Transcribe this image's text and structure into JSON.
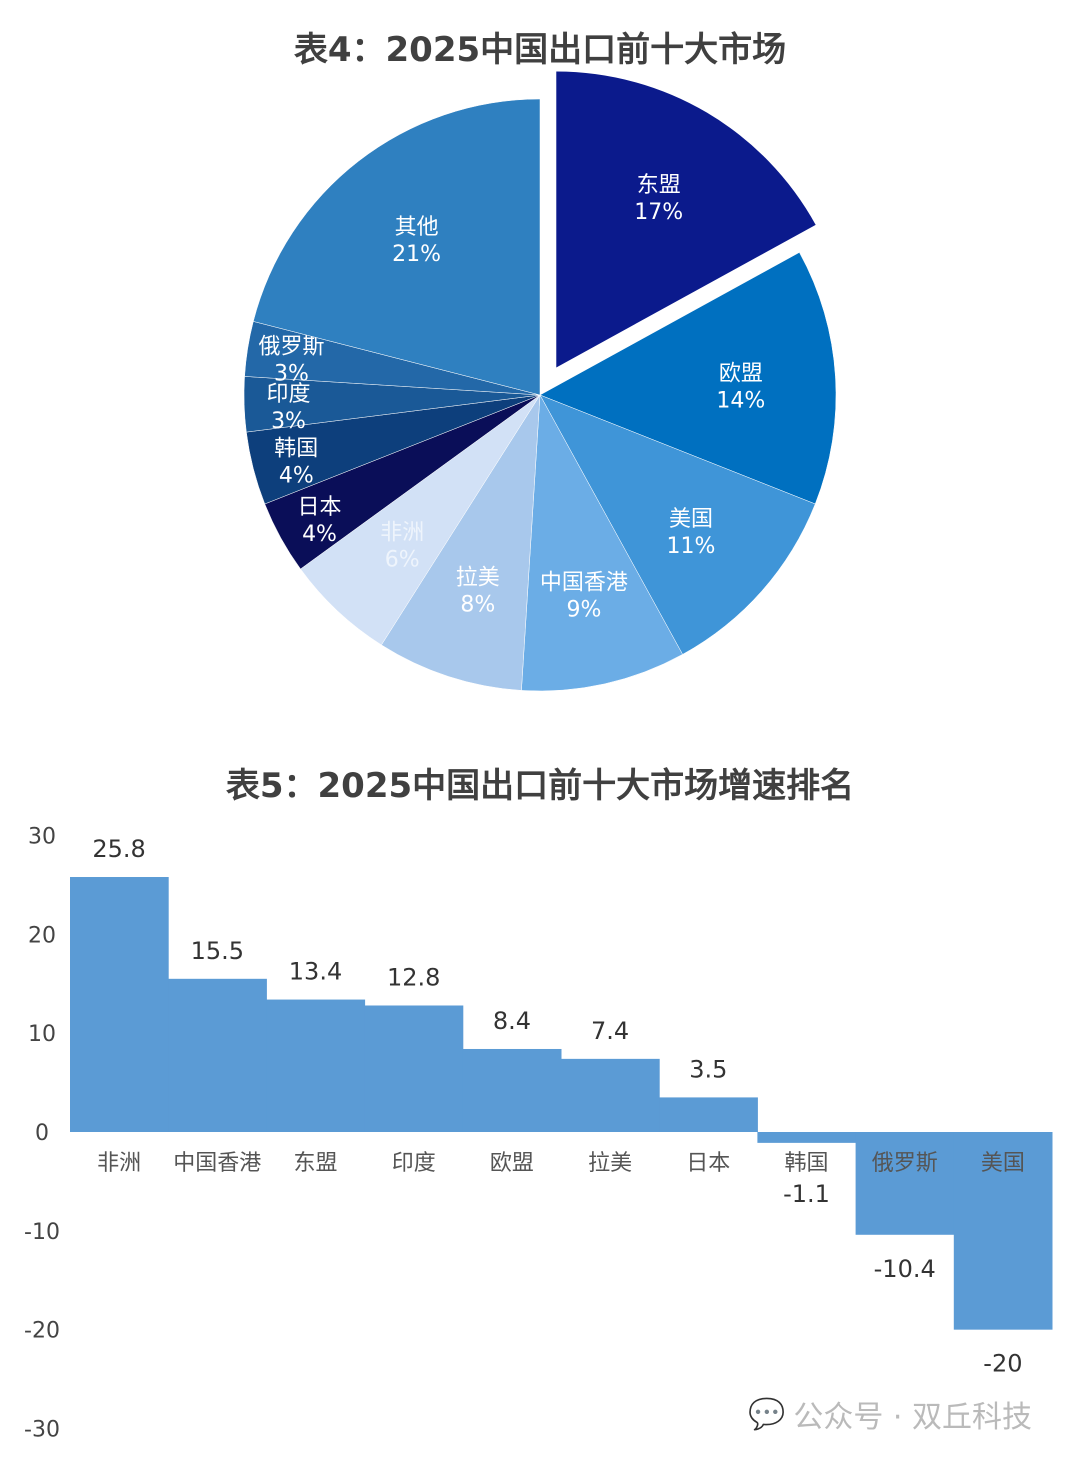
{
  "chart_data": [
    {
      "type": "pie",
      "title": "表4：2025中国出口前十大市场",
      "exploded": "东盟",
      "slices": [
        {
          "label": "东盟",
          "value": 17,
          "text": "17%",
          "color": "#0b1a8c"
        },
        {
          "label": "欧盟",
          "value": 14,
          "text": "14%",
          "color": "#0070c0"
        },
        {
          "label": "美国",
          "value": 11,
          "text": "11%",
          "color": "#3f95d8"
        },
        {
          "label": "中国香港",
          "value": 9,
          "text": "9%",
          "color": "#6badE6"
        },
        {
          "label": "拉美",
          "value": 8,
          "text": "8%",
          "color": "#a8c8ec"
        },
        {
          "label": "非洲",
          "value": 6,
          "text": "6%",
          "color": "#d2e1f6"
        },
        {
          "label": "日本",
          "value": 4,
          "text": "4%",
          "color": "#0a0e58"
        },
        {
          "label": "韩国",
          "value": 4,
          "text": "4%",
          "color": "#0d3f7c"
        },
        {
          "label": "印度",
          "value": 3,
          "text": "3%",
          "color": "#1a5997"
        },
        {
          "label": "俄罗斯",
          "value": 3,
          "text": "3%",
          "color": "#2368a8"
        },
        {
          "label": "其他",
          "value": 21,
          "text": "21%",
          "color": "#2f80c0"
        }
      ]
    },
    {
      "type": "bar",
      "title": "表5：2025中国出口前十大市场增速排名",
      "categories": [
        "非洲",
        "中国香港",
        "东盟",
        "印度",
        "欧盟",
        "拉美",
        "日本",
        "韩国",
        "俄罗斯",
        "美国"
      ],
      "values": [
        25.8,
        15.5,
        13.4,
        12.8,
        8.4,
        7.4,
        3.5,
        -1.1,
        -10.4,
        -20
      ],
      "ylim": [
        -30,
        30
      ],
      "yticks": [
        30,
        20,
        10,
        0,
        -10,
        -20,
        -30
      ],
      "grid": false,
      "color": "#5b9bd5"
    }
  ],
  "watermark": "公众号 · 双丘科技"
}
